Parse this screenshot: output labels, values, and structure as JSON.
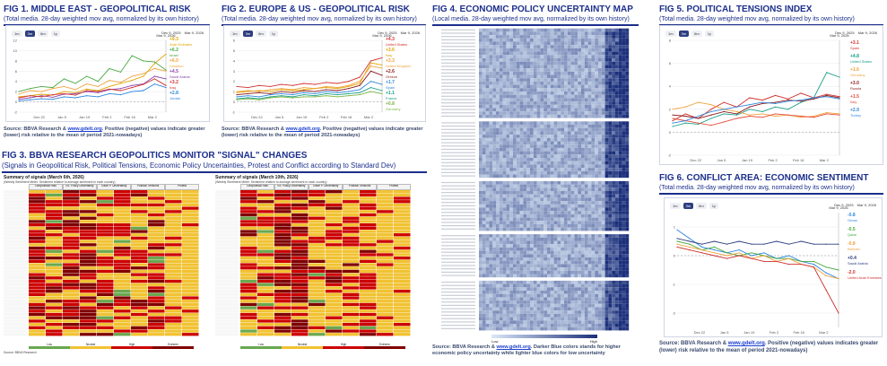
{
  "fig1": {
    "title": "FIG 1. MIDDLE EAST - GEOPOLITICAL RISK",
    "subtitle": "(Total media. 28-day weighted mov avg, normalized by its own history)",
    "zoom": [
      "1m",
      "3m",
      "6m",
      "1y"
    ],
    "zoom_active": 1,
    "range_from": "Dec 9, 2025",
    "range_to": "Mar 9, 2026",
    "date_label": "Mar 9, 2026",
    "source_prefix": "Source: BBVA Research & ",
    "source_link": "www.gdelt.org",
    "source_text": ". Positive (negative) values indicate greater (lower) risk relative to the mean of period 2021-nowadays)",
    "legend": [
      {
        "value": "+9.3",
        "name": "Arab Emirates",
        "color": "#e0a400"
      },
      {
        "value": "+6.2",
        "name": "Israel",
        "color": "#49a942"
      },
      {
        "value": "+6.0",
        "name": "Lebanon",
        "color": "#f0a23c"
      },
      {
        "value": "+4.5",
        "name": "Saudi Arabia",
        "color": "#8e44ad"
      },
      {
        "value": "+3.2",
        "name": "Iraq",
        "color": "#d0312d"
      },
      {
        "value": "+2.8",
        "name": "Jordan",
        "color": "#2e86de"
      }
    ],
    "x_ticks": [
      "Dec 22",
      "Jan 5",
      "Jan 19",
      "Feb 2",
      "Feb 16",
      "Mar 2"
    ],
    "y_ticks": [
      "12",
      "10",
      "8",
      "6",
      "4",
      "2",
      "0",
      "-2"
    ]
  },
  "fig2": {
    "title": "FIG 2. EUROPE & US - GEOPOLITICAL RISK",
    "subtitle": "(Total media. 28-day weighted mov avg, normalized by its own history)",
    "zoom": [
      "1m",
      "3m",
      "6m",
      "1y"
    ],
    "zoom_active": 1,
    "range_from": "Dec 9, 2025",
    "range_to": "Mar 9, 2026",
    "date_label": "Mar 9, 2026",
    "source_prefix": "Source: BBVA Research & ",
    "source_link": "www.gdelt.org",
    "source_text": ". Positive (negative) values indicate greater (lower) risk relative to the mean of period 2021-nowadays)",
    "legend": [
      {
        "value": "+4.3",
        "name": "United States",
        "color": "#d0312d"
      },
      {
        "value": "+3.6",
        "name": "Italy",
        "color": "#e0a400"
      },
      {
        "value": "+3.3",
        "name": "United Kingdom",
        "color": "#f0a23c"
      },
      {
        "value": "+2.6",
        "name": "Greece",
        "color": "#8b1a1a"
      },
      {
        "value": "+1.7",
        "name": "Spain",
        "color": "#2e86de"
      },
      {
        "value": "+1.1",
        "name": "France",
        "color": "#16a085"
      },
      {
        "value": "+0.8",
        "name": "Germany",
        "color": "#7cb342"
      }
    ],
    "x_ticks": [
      "Dec 22",
      "Jan 5",
      "Jan 19",
      "Feb 2",
      "Feb 16",
      "Mar 2"
    ],
    "y_ticks": [
      "6",
      "5",
      "4",
      "3",
      "2",
      "1",
      "0",
      "-1"
    ]
  },
  "fig3": {
    "title": "FIG 3. BBVA RESEARCH GEOPOLITICS MONITOR \"SIGNAL\" CHANGES",
    "subtitle": "(Signals in Geopolitical Risk, Political Tensions, Economic Policy Uncertainties, Protest and Conflict according to Standard Dev)",
    "tables": [
      {
        "title": "Summary of signals (March 6th, 2026)",
        "note": "(Weekly Sentiment Meter. Sentiment relative to average sentiment in each country)"
      },
      {
        "title": "Summary of signals (March 10th, 2026)",
        "note": "(Weekly Sentiment Meter. Sentiment relative to average sentiment in each country)"
      }
    ],
    "headers": [
      "Geopolitical Risk",
      "Ec. Policy Uncertainty",
      "Trade P. Uncertainty",
      "Political Tensions",
      "Protest"
    ],
    "legend": [
      "Low",
      "Neutral",
      "High",
      "Extreme"
    ],
    "source": "Source: BBVA Research"
  },
  "fig4": {
    "title": "FIG 4. ECONOMIC POLICY UNCERTAINTY MAP",
    "subtitle": "(Local media. 28-day weighted mov avg, normalized by its own history)",
    "scale_low": "Low",
    "scale_high": "High",
    "source_prefix": "Source: BBVA Research & ",
    "source_link": "www.gdelt.org",
    "source_text": ". Darker Blue colors stands for higher economic policy uncertainty while lighter blue colors for low uncertainty"
  },
  "fig5": {
    "title": "FIG 5. POLITICAL TENSIONS INDEX",
    "subtitle": "(Total media. 28-day weighted mov avg, normalized by its own history)",
    "zoom": [
      "1m",
      "3m",
      "6m",
      "1y"
    ],
    "zoom_active": 1,
    "range_from": "Dec 9, 2025",
    "range_to": "Mar 9, 2026",
    "date_label": "Mar 9, 2026",
    "legend": [
      {
        "value": "+3.1",
        "name": "Spain",
        "color": "#d0312d"
      },
      {
        "value": "+4.8",
        "name": "United States",
        "color": "#16a085"
      },
      {
        "value": "+1.6",
        "name": "Germany",
        "color": "#f0a23c"
      },
      {
        "value": "+3.0",
        "name": "Russia",
        "color": "#8b1a1a"
      },
      {
        "value": "+1.5",
        "name": "Italy",
        "color": "#e74c3c"
      },
      {
        "value": "+2.9",
        "name": "Turkey",
        "color": "#2e86de"
      }
    ],
    "x_ticks": [
      "Dec 22",
      "Jan 5",
      "Jan 19",
      "Feb 2",
      "Feb 16",
      "Mar 2"
    ],
    "y_ticks": [
      "8",
      "6",
      "4",
      "2",
      "0",
      "-2"
    ]
  },
  "fig6": {
    "title": "FIG 6. CONFLICT AREA: ECONOMIC SENTIMENT",
    "subtitle": "(Total media. 28-day weighted mov avg, normalized by its own history)",
    "zoom": [
      "1m",
      "3m",
      "6m",
      "1y"
    ],
    "zoom_active": 1,
    "range_from": "Dec 9, 2025",
    "range_to": "Mar 9, 2026",
    "date_label": "Mar 9, 2026",
    "legend": [
      {
        "value": "-0.8",
        "name": "Oman",
        "color": "#2e86de"
      },
      {
        "value": "-0.5",
        "name": "Qatar",
        "color": "#49a942"
      },
      {
        "value": "-0.8",
        "name": "Bahrain",
        "color": "#f0a23c"
      },
      {
        "value": "+0.4",
        "name": "Saudi Arabia",
        "color": "#2e3e80"
      },
      {
        "value": "-2.0",
        "name": "United Arab Emirates",
        "color": "#d0312d"
      }
    ],
    "x_ticks": [
      "Dec 22",
      "Jan 5",
      "Jan 19",
      "Feb 2",
      "Feb 16",
      "Mar 2"
    ],
    "y_ticks": [
      "1",
      "0",
      "-1",
      "-2"
    ],
    "source_prefix": "Source: BBVA Research & ",
    "source_link": "www.gdelt.org",
    "source_text": ". Positive (negative) values indicates greater (lower) risk relative to the mean of period 2021-nowadays)"
  },
  "chart_data": [
    {
      "type": "line",
      "title": "FIG 1. MIDDLE EAST - GEOPOLITICAL RISK",
      "x": [
        "Dec 9",
        "Dec 16",
        "Dec 22",
        "Dec 29",
        "Jan 5",
        "Jan 12",
        "Jan 19",
        "Jan 26",
        "Feb 2",
        "Feb 9",
        "Feb 16",
        "Feb 23",
        "Mar 2",
        "Mar 9"
      ],
      "ylim": [
        -2,
        12
      ],
      "series": [
        {
          "name": "Arab Emirates",
          "values": [
            1.0,
            1.2,
            1.5,
            1.3,
            2.0,
            1.8,
            2.5,
            2.2,
            3.0,
            3.6,
            4.2,
            5.0,
            7.5,
            9.3
          ]
        },
        {
          "name": "Israel",
          "values": [
            2.0,
            2.6,
            3.0,
            2.8,
            4.5,
            3.6,
            5.0,
            4.0,
            6.5,
            5.8,
            9.0,
            8.0,
            7.8,
            6.2
          ]
        },
        {
          "name": "Lebanon",
          "values": [
            1.5,
            2.2,
            2.0,
            2.6,
            3.0,
            2.4,
            3.5,
            3.0,
            4.2,
            3.8,
            5.0,
            5.5,
            6.5,
            6.0
          ]
        },
        {
          "name": "Saudi Arabia",
          "values": [
            0.5,
            0.8,
            1.2,
            0.9,
            1.5,
            1.6,
            2.0,
            1.8,
            2.4,
            2.6,
            3.2,
            3.5,
            5.0,
            4.5
          ]
        },
        {
          "name": "Iraq",
          "values": [
            0.8,
            1.2,
            1.0,
            1.4,
            1.6,
            1.3,
            2.2,
            2.0,
            2.5,
            2.2,
            2.8,
            3.4,
            4.5,
            3.2
          ]
        },
        {
          "name": "Jordan",
          "values": [
            0.2,
            0.4,
            0.6,
            0.5,
            1.0,
            0.8,
            1.2,
            1.0,
            1.6,
            1.4,
            2.0,
            2.2,
            3.5,
            2.8
          ]
        }
      ]
    },
    {
      "type": "line",
      "title": "FIG 2. EUROPE & US - GEOPOLITICAL RISK",
      "x": [
        "Dec 9",
        "Dec 16",
        "Dec 22",
        "Dec 29",
        "Jan 5",
        "Jan 12",
        "Jan 19",
        "Jan 26",
        "Feb 2",
        "Feb 9",
        "Feb 16",
        "Feb 23",
        "Mar 2",
        "Mar 9"
      ],
      "ylim": [
        -1,
        6
      ],
      "series": [
        {
          "name": "United States",
          "values": [
            1.5,
            1.4,
            1.6,
            1.5,
            1.7,
            1.6,
            1.8,
            1.7,
            1.9,
            1.8,
            2.0,
            2.4,
            4.0,
            4.3
          ]
        },
        {
          "name": "Italy",
          "values": [
            0.9,
            1.0,
            1.1,
            1.0,
            1.2,
            1.1,
            1.2,
            1.3,
            1.4,
            1.3,
            1.5,
            1.8,
            3.8,
            3.6
          ]
        },
        {
          "name": "United Kingdom",
          "values": [
            1.0,
            1.1,
            1.0,
            1.2,
            1.3,
            1.2,
            1.4,
            1.3,
            1.5,
            1.4,
            1.6,
            2.0,
            3.5,
            3.3
          ]
        },
        {
          "name": "Greece",
          "values": [
            0.7,
            0.8,
            0.9,
            0.8,
            1.0,
            0.9,
            1.1,
            1.0,
            1.2,
            1.1,
            1.3,
            1.6,
            3.0,
            2.6
          ]
        },
        {
          "name": "Spain",
          "values": [
            0.5,
            0.6,
            0.5,
            0.7,
            0.8,
            0.7,
            0.9,
            0.8,
            1.0,
            0.9,
            1.0,
            1.2,
            2.0,
            1.7
          ]
        },
        {
          "name": "France",
          "values": [
            0.3,
            0.4,
            0.3,
            0.5,
            0.6,
            0.5,
            0.7,
            0.6,
            0.8,
            0.7,
            0.8,
            0.9,
            1.4,
            1.1
          ]
        },
        {
          "name": "Germany",
          "values": [
            0.2,
            0.3,
            0.2,
            0.4,
            0.5,
            0.4,
            0.5,
            0.5,
            0.6,
            0.5,
            0.6,
            0.7,
            1.0,
            0.8
          ]
        }
      ]
    },
    {
      "type": "line",
      "title": "FIG 5. POLITICAL TENSIONS INDEX",
      "x": [
        "Dec 9",
        "Dec 16",
        "Dec 22",
        "Dec 29",
        "Jan 5",
        "Jan 12",
        "Jan 19",
        "Jan 26",
        "Feb 2",
        "Feb 9",
        "Feb 16",
        "Feb 23",
        "Mar 2",
        "Mar 9"
      ],
      "ylim": [
        -2,
        8
      ],
      "series": [
        {
          "name": "Spain",
          "values": [
            1.0,
            1.6,
            1.2,
            2.0,
            2.6,
            2.2,
            3.0,
            2.8,
            3.2,
            2.9,
            3.4,
            3.0,
            3.3,
            3.1
          ]
        },
        {
          "name": "United States",
          "values": [
            0.5,
            0.8,
            0.7,
            1.2,
            1.6,
            1.5,
            2.0,
            1.8,
            2.2,
            2.0,
            2.6,
            3.0,
            5.2,
            4.8
          ]
        },
        {
          "name": "Germany",
          "values": [
            2.0,
            2.2,
            2.6,
            2.4,
            2.0,
            1.8,
            1.5,
            1.6,
            1.4,
            1.5,
            1.3,
            1.4,
            1.7,
            1.6
          ]
        },
        {
          "name": "Russia",
          "values": [
            1.5,
            1.4,
            1.2,
            1.5,
            1.8,
            1.6,
            2.2,
            2.5,
            2.6,
            2.8,
            2.7,
            2.9,
            3.2,
            3.0
          ]
        },
        {
          "name": "Italy",
          "values": [
            1.2,
            1.0,
            0.8,
            0.6,
            0.9,
            1.2,
            1.4,
            1.3,
            1.6,
            1.5,
            1.4,
            1.3,
            1.6,
            1.5
          ]
        },
        {
          "name": "Turkey",
          "values": [
            0.8,
            1.0,
            1.4,
            1.8,
            2.0,
            2.2,
            2.4,
            2.6,
            2.5,
            2.7,
            2.8,
            3.0,
            3.1,
            2.9
          ]
        }
      ]
    },
    {
      "type": "line",
      "title": "FIG 6. CONFLICT AREA: ECONOMIC SENTIMENT",
      "x": [
        "Dec 9",
        "Dec 16",
        "Dec 22",
        "Dec 29",
        "Jan 5",
        "Jan 12",
        "Jan 19",
        "Jan 26",
        "Feb 2",
        "Feb 9",
        "Feb 16",
        "Feb 23",
        "Mar 2",
        "Mar 9"
      ],
      "ylim": [
        -2.5,
        1.5
      ],
      "series": [
        {
          "name": "Oman",
          "values": [
            0.9,
            0.6,
            0.3,
            0.2,
            0.1,
            0.2,
            0.0,
            0.1,
            -0.1,
            0.0,
            -0.2,
            -0.3,
            -0.6,
            -0.8
          ]
        },
        {
          "name": "Qatar",
          "values": [
            0.5,
            0.4,
            0.2,
            0.3,
            0.1,
            0.0,
            0.1,
            0.0,
            -0.1,
            -0.1,
            -0.2,
            -0.2,
            -0.4,
            -0.5
          ]
        },
        {
          "name": "Bahrain",
          "values": [
            0.4,
            0.3,
            0.2,
            0.1,
            0.0,
            0.1,
            -0.1,
            0.0,
            -0.2,
            -0.1,
            -0.3,
            -0.4,
            -0.7,
            -0.8
          ]
        },
        {
          "name": "Saudi Arabia",
          "values": [
            0.6,
            0.5,
            0.4,
            0.5,
            0.4,
            0.5,
            0.4,
            0.4,
            0.5,
            0.4,
            0.5,
            0.4,
            0.4,
            0.4
          ]
        },
        {
          "name": "United Arab Emirates",
          "values": [
            0.3,
            0.2,
            0.1,
            0.0,
            -0.1,
            0.0,
            -0.1,
            -0.2,
            -0.2,
            -0.3,
            -0.3,
            -0.4,
            -1.2,
            -2.0
          ]
        }
      ]
    }
  ]
}
